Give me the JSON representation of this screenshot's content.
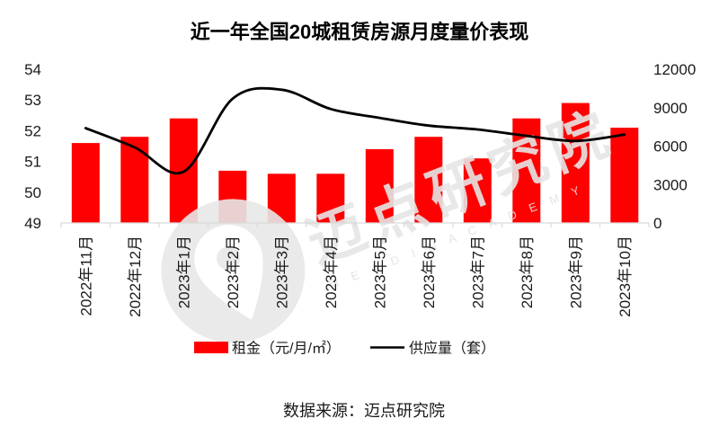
{
  "title": "近一年全国20城租赁房源月度量价表现",
  "source_note": "数据来源：迈点研究院",
  "watermark": {
    "cn": "迈点研究院",
    "en": "M E A D I N  A C A D E M Y"
  },
  "legend": [
    {
      "label": "租金（元/月/㎡）",
      "type": "bar",
      "color": "#fe0000"
    },
    {
      "label": "供应量（套）",
      "type": "line",
      "color": "#000000"
    }
  ],
  "chart_data": {
    "type": "bar",
    "subtype": "combo-bar-line",
    "title": "近一年全国20城租赁房源月度量价表现",
    "categories": [
      "2022年11月",
      "2022年12月",
      "2023年1月",
      "2023年2月",
      "2023年3月",
      "2023年4月",
      "2023年5月",
      "2023年6月",
      "2023年7月",
      "2023年8月",
      "2023年9月",
      "2023年10月"
    ],
    "series": [
      {
        "name": "租金（元/月/㎡）",
        "type": "bar",
        "axis": "left",
        "color": "#fe0000",
        "values": [
          51.6,
          51.8,
          52.4,
          50.7,
          50.6,
          50.6,
          51.4,
          51.8,
          51.1,
          52.4,
          52.9,
          52.1
        ]
      },
      {
        "name": "供应量（套）",
        "type": "line",
        "axis": "right",
        "color": "#000000",
        "values": [
          7400,
          5900,
          4000,
          9700,
          10400,
          8900,
          8200,
          7600,
          7300,
          6800,
          6400,
          6900
        ]
      }
    ],
    "left_axis": {
      "min": 49,
      "max": 54,
      "ticks": [
        49,
        50,
        51,
        52,
        53,
        54
      ]
    },
    "right_axis": {
      "min": 0,
      "max": 12000,
      "ticks": [
        0,
        3000,
        6000,
        9000,
        12000
      ]
    },
    "grid": false,
    "legend_position": "bottom",
    "axis_line_color": "#d9d9d9"
  }
}
